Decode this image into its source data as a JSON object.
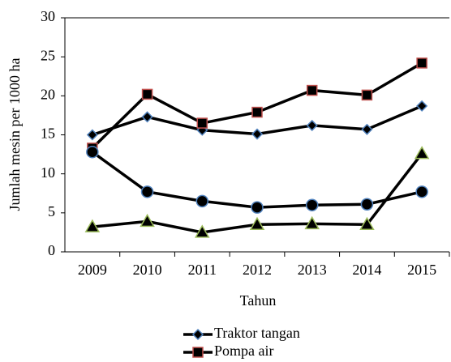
{
  "chart_data": {
    "type": "line",
    "x_label": "Tahun",
    "y_label": "Jumlah mesin per 1000 ha",
    "categories": [
      "2009",
      "2010",
      "2011",
      "2012",
      "2013",
      "2014",
      "2015"
    ],
    "ylim": [
      0,
      30
    ],
    "yticks": [
      0,
      5,
      10,
      15,
      20,
      25,
      30
    ],
    "series": [
      {
        "name": "Traktor tangan",
        "color": "#000000",
        "marker": "diamond",
        "marker_edge": "#4f81bd",
        "values": [
          15.0,
          17.3,
          15.6,
          15.1,
          16.2,
          15.7,
          18.7
        ]
      },
      {
        "name": "Pompa air",
        "color": "#000000",
        "marker": "square",
        "marker_edge": "#c0504d",
        "values": [
          13.3,
          20.2,
          16.5,
          17.9,
          20.7,
          20.1,
          24.2
        ]
      },
      {
        "color": "#000000",
        "marker": "circle",
        "marker_edge": "#4f81bd",
        "values": [
          12.8,
          7.7,
          6.5,
          5.7,
          6.0,
          6.1,
          7.7
        ]
      },
      {
        "color": "#000000",
        "marker": "triangle",
        "marker_edge": "#9bbb59",
        "values": [
          3.2,
          3.9,
          2.5,
          3.5,
          3.6,
          3.5,
          12.6
        ]
      }
    ]
  }
}
